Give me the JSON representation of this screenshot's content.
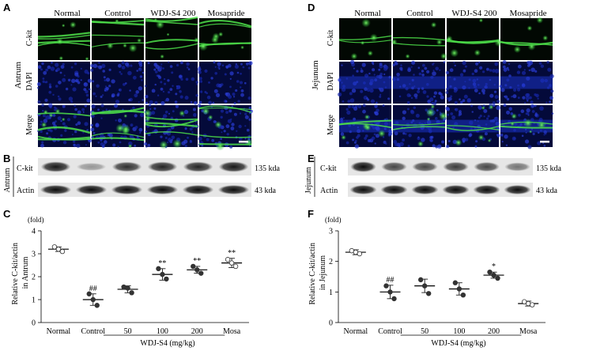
{
  "panels": {
    "A": {
      "label": "A",
      "tissue": "Antrum",
      "columns": [
        "Normal",
        "Control",
        "WDJ-S4 200",
        "Mosapride"
      ],
      "rows": [
        "C-kit",
        "DAPI",
        "Merge"
      ]
    },
    "D": {
      "label": "D",
      "tissue": "Jejunum",
      "columns": [
        "Normal",
        "Control",
        "WDJ-S4 200",
        "Mosapride"
      ],
      "rows": [
        "C-kit",
        "DAPI",
        "Merge"
      ]
    },
    "B": {
      "label": "B",
      "tissue": "Antrum",
      "rows": [
        {
          "name": "C-kit",
          "size": "135 kda"
        },
        {
          "name": "Actin",
          "size": "43 kda"
        }
      ],
      "ckit_intensity": [
        0.9,
        0.35,
        0.8,
        0.85,
        0.85,
        0.9
      ]
    },
    "E": {
      "label": "E",
      "tissue": "Jejunum",
      "rows": [
        {
          "name": "C-kit",
          "size": "135 kda"
        },
        {
          "name": "Actin",
          "size": "43 kda"
        }
      ],
      "ckit_intensity": [
        0.95,
        0.7,
        0.7,
        0.75,
        0.7,
        0.5
      ]
    },
    "C": {
      "label": "C"
    },
    "F": {
      "label": "F"
    }
  },
  "chart_data": [
    {
      "type": "scatter",
      "panel": "C",
      "ylabel": "Relative C-kit/actin in Antrum",
      "yunit": "(fold)",
      "ylim": [
        0,
        4
      ],
      "yticks": [
        0,
        1,
        2,
        3,
        4
      ],
      "categories": [
        "Normal",
        "Control",
        "50",
        "100",
        "200",
        "Mosa"
      ],
      "group_label": "WDJ-S4 (mg/kg)",
      "means": [
        3.2,
        1.0,
        1.45,
        2.1,
        2.3,
        2.6
      ],
      "sd": [
        0.1,
        0.25,
        0.15,
        0.25,
        0.15,
        0.2
      ],
      "points": [
        [
          3.3,
          3.2,
          3.1
        ],
        [
          1.25,
          1.0,
          0.75
        ],
        [
          1.55,
          1.5,
          1.3
        ],
        [
          2.35,
          2.1,
          1.9
        ],
        [
          2.45,
          2.3,
          2.15
        ],
        [
          2.75,
          2.6,
          2.45
        ]
      ],
      "annotations": [
        "",
        "##",
        "",
        "**",
        "**",
        "**"
      ]
    },
    {
      "type": "scatter",
      "panel": "F",
      "ylabel": "Relative C-kit/actin in Jejunum",
      "yunit": "(fold)",
      "ylim": [
        0,
        3
      ],
      "yticks": [
        0,
        1,
        2,
        3
      ],
      "categories": [
        "Normal",
        "Control",
        "50",
        "100",
        "200",
        "Mosa"
      ],
      "group_label": "WDJ-S4 (mg/kg)",
      "means": [
        2.3,
        1.0,
        1.2,
        1.1,
        1.55,
        0.62
      ],
      "sd": [
        0.08,
        0.22,
        0.22,
        0.2,
        0.1,
        0.08
      ],
      "points": [
        [
          2.35,
          2.3,
          2.25
        ],
        [
          1.2,
          1.0,
          0.78
        ],
        [
          1.4,
          1.2,
          0.95
        ],
        [
          1.3,
          1.1,
          0.9
        ],
        [
          1.65,
          1.55,
          1.45
        ],
        [
          0.68,
          0.62,
          0.58
        ]
      ],
      "annotations": [
        "",
        "##",
        "",
        "",
        "*",
        ""
      ]
    }
  ]
}
